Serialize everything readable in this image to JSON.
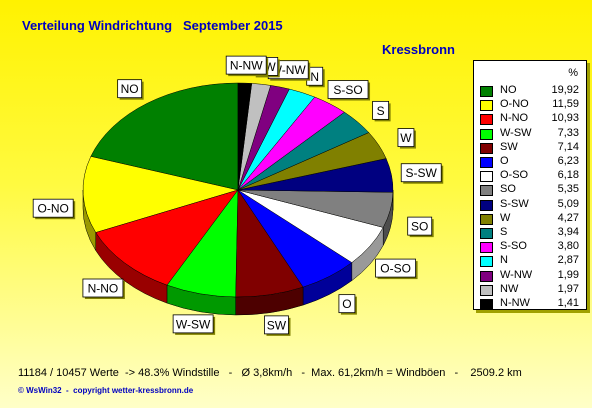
{
  "header": {
    "title": "Verteilung Windrichtung   September 2015",
    "location": "Kressbronn"
  },
  "chart_data": {
    "type": "pie",
    "unit_label": "%",
    "labels": [
      "NO",
      "O-NO",
      "N-NO",
      "W-SW",
      "SW",
      "O",
      "O-SO",
      "SO",
      "S-SW",
      "W",
      "S",
      "S-SO",
      "N",
      "W-NW",
      "NW",
      "N-NW"
    ],
    "values": [
      19.92,
      11.59,
      10.93,
      7.33,
      7.14,
      6.23,
      6.18,
      5.35,
      5.09,
      4.27,
      3.94,
      3.8,
      2.87,
      1.99,
      1.97,
      1.41
    ],
    "value_labels": [
      "19,92",
      "11,59",
      "10,93",
      "7,33",
      "7,14",
      "6,23",
      "6,18",
      "5,35",
      "5,09",
      "4,27",
      "3,94",
      "3,80",
      "2,87",
      "1,99",
      "1,97",
      "1,41"
    ],
    "colors": [
      "#008000",
      "#FFFF00",
      "#FF0000",
      "#00FF00",
      "#800000",
      "#0000FF",
      "#FFFFFF",
      "#808080",
      "#000080",
      "#808000",
      "#008080",
      "#FF00FF",
      "#00FFFF",
      "#800080",
      "#C0C0C0",
      "#000000"
    ],
    "callout_labels": [
      "NO",
      "O-NO",
      "N-NO",
      "W-SW",
      "SW",
      "O",
      "O-SO",
      "SO",
      "S-SW",
      "W",
      "S",
      "S-SO",
      "N",
      "W-NW",
      "NW",
      "N-NW"
    ]
  },
  "footer": {
    "stats": "11184 / 10457 Werte  -> 48.3% Windstille   -   Ø 3,8km/h   -  Max. 61,2km/h = Windböen   -    2509.2 km",
    "copyright": "© WsWin32  -  copyright wetter-kressbronn.de"
  }
}
